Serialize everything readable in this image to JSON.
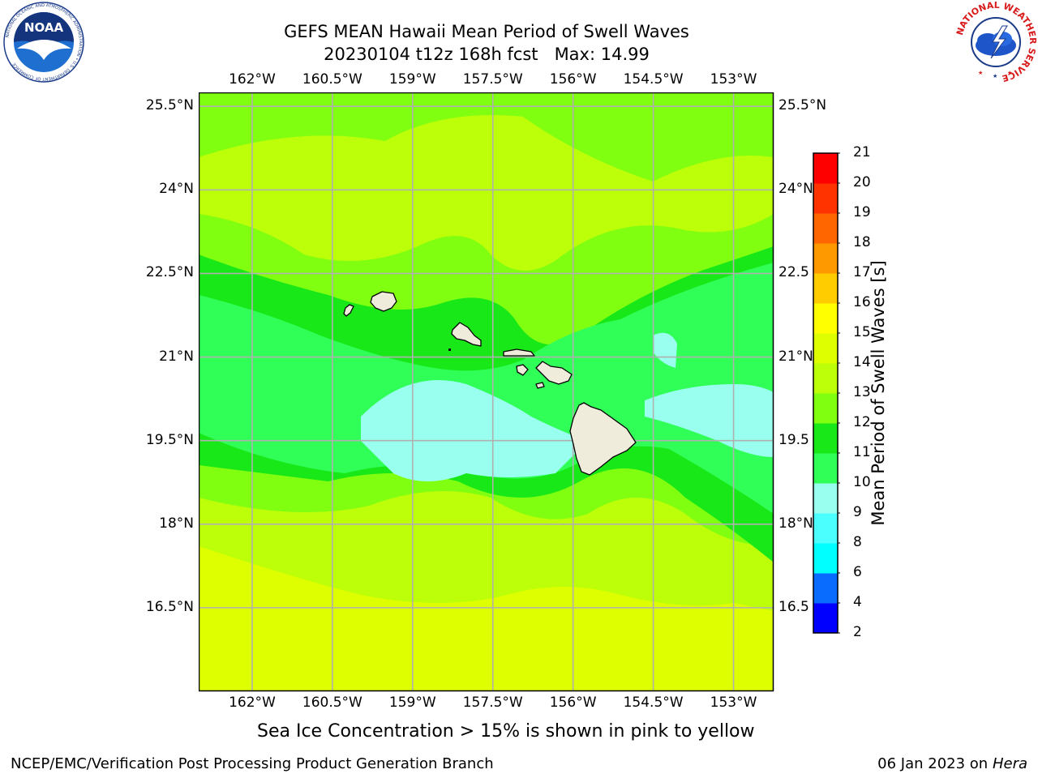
{
  "title": {
    "line1": "GEFS MEAN Hawaii Mean Period of Swell Waves",
    "line2": "20230104 t12z 168h fcst   Max: 14.99"
  },
  "logos": {
    "left": "noaa-logo",
    "left_text": "NOAA",
    "left_ring": "NATIONAL OCEANIC AND ATMOSPHERIC ADMINISTRATION • U.S. DEPARTMENT OF COMMERCE",
    "right": "nws-logo",
    "right_ring": "NATIONAL WEATHER SERVICE"
  },
  "map": {
    "lon_ticks": [
      "162°W",
      "160.5°W",
      "159°W",
      "157.5°W",
      "156°W",
      "154.5°W",
      "153°W"
    ],
    "lon_values": [
      -162,
      -160.5,
      -159,
      -157.5,
      -156,
      -154.5,
      -153
    ],
    "lat_ticks": [
      "25.5°N",
      "24°N",
      "22.5°N",
      "21°N",
      "19.5°N",
      "18°N",
      "16.5°N"
    ],
    "lat_values": [
      25.5,
      24,
      22.5,
      21,
      19.5,
      18,
      16.5
    ],
    "lat_ticks_right": [
      "25.5°N",
      "24°N",
      "22.5",
      "21°N",
      "19.5",
      "18°N",
      "16.5"
    ],
    "lon_range": [
      -163,
      -152.25
    ],
    "lat_range": [
      15,
      25.75
    ],
    "land_color": "#efecdc",
    "grid_color": "#b0b0b0"
  },
  "colorbar": {
    "label": "Mean Period of Swell Waves [s]",
    "levels": [
      "2",
      "4",
      "6",
      "8",
      "9",
      "10",
      "11",
      "12",
      "13",
      "14",
      "15",
      "16",
      "17",
      "18",
      "19",
      "20",
      "21"
    ],
    "colors": [
      "#0000ff",
      "#0a6cff",
      "#00ffff",
      "#4cffff",
      "#99ffee",
      "#30ff58",
      "#18e818",
      "#80ff10",
      "#bcff08",
      "#ddff00",
      "#ffff00",
      "#ffcc00",
      "#ff9900",
      "#ff6600",
      "#ff3300",
      "#ff0000"
    ]
  },
  "footnote": "Sea Ice Concentration > 15% is shown in pink to yellow",
  "footer": {
    "left": "NCEP/EMC/Verification Post Processing Product Generation Branch",
    "right_date": "06 Jan 2023 on ",
    "right_machine": "Hera"
  }
}
